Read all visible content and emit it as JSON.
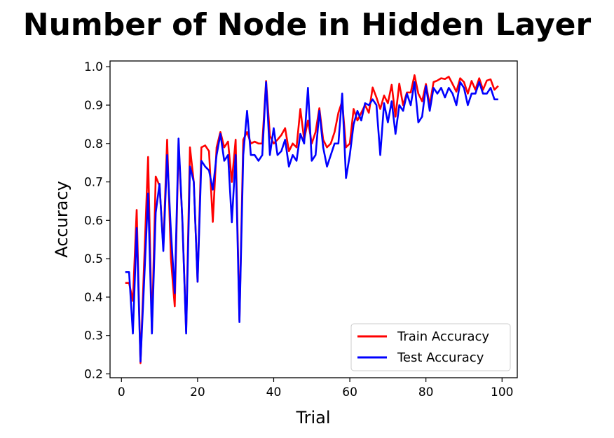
{
  "chart_data": {
    "type": "line",
    "title": "Number of Node in Hidden Layer",
    "xlabel": "Trial",
    "ylabel": "Accuracy",
    "xlim": [
      -3,
      104
    ],
    "ylim": [
      0.19,
      1.015
    ],
    "xticks": [
      0,
      20,
      40,
      60,
      80,
      100
    ],
    "yticks": [
      0.2,
      0.3,
      0.4,
      0.5,
      0.6,
      0.7,
      0.8,
      0.9,
      1.0
    ],
    "ytick_labels": [
      "0.2",
      "0.3",
      "0.4",
      "0.5",
      "0.6",
      "0.7",
      "0.8",
      "0.9",
      "1.0"
    ],
    "grid": false,
    "legend_position": "lower-right",
    "x": [
      1,
      2,
      3,
      4,
      5,
      6,
      7,
      8,
      9,
      10,
      11,
      12,
      13,
      14,
      15,
      16,
      17,
      18,
      19,
      20,
      21,
      22,
      23,
      24,
      25,
      26,
      27,
      28,
      29,
      30,
      31,
      32,
      33,
      34,
      35,
      36,
      37,
      38,
      39,
      40,
      41,
      42,
      43,
      44,
      45,
      46,
      47,
      48,
      49,
      50,
      51,
      52,
      53,
      54,
      55,
      56,
      57,
      58,
      59,
      60,
      61,
      62,
      63,
      64,
      65,
      66,
      67,
      68,
      69,
      70,
      71,
      72,
      73,
      74,
      75,
      76,
      77,
      78,
      79,
      80,
      81,
      82,
      83,
      84,
      85,
      86,
      87,
      88,
      89,
      90,
      91,
      92,
      93,
      94,
      95,
      96,
      97,
      98,
      99
    ],
    "series": [
      {
        "name": "Train Accuracy",
        "color": "#ff0000",
        "values": [
          0.437,
          0.437,
          0.39,
          0.627,
          0.228,
          0.5,
          0.765,
          0.31,
          0.714,
          0.69,
          0.53,
          0.81,
          0.5,
          0.376,
          0.8,
          0.6,
          0.31,
          0.79,
          0.7,
          0.44,
          0.79,
          0.795,
          0.78,
          0.596,
          0.79,
          0.83,
          0.79,
          0.805,
          0.7,
          0.81,
          0.34,
          0.81,
          0.83,
          0.8,
          0.805,
          0.8,
          0.8,
          0.963,
          0.82,
          0.8,
          0.81,
          0.822,
          0.84,
          0.78,
          0.8,
          0.79,
          0.89,
          0.81,
          0.86,
          0.8,
          0.83,
          0.892,
          0.81,
          0.79,
          0.8,
          0.83,
          0.88,
          0.91,
          0.79,
          0.8,
          0.89,
          0.86,
          0.88,
          0.9,
          0.88,
          0.946,
          0.92,
          0.89,
          0.925,
          0.905,
          0.953,
          0.87,
          0.956,
          0.9,
          0.933,
          0.933,
          0.978,
          0.93,
          0.91,
          0.955,
          0.9,
          0.96,
          0.964,
          0.97,
          0.968,
          0.974,
          0.955,
          0.935,
          0.97,
          0.96,
          0.93,
          0.963,
          0.94,
          0.97,
          0.94,
          0.964,
          0.967,
          0.94,
          0.95
        ]
      },
      {
        "name": "Test Accuracy",
        "color": "#0000ff",
        "values": [
          0.465,
          0.465,
          0.305,
          0.58,
          0.232,
          0.45,
          0.67,
          0.305,
          0.62,
          0.695,
          0.52,
          0.77,
          0.57,
          0.41,
          0.813,
          0.6,
          0.305,
          0.74,
          0.7,
          0.44,
          0.755,
          0.74,
          0.73,
          0.68,
          0.77,
          0.825,
          0.755,
          0.77,
          0.595,
          0.77,
          0.335,
          0.77,
          0.885,
          0.77,
          0.77,
          0.755,
          0.77,
          0.96,
          0.77,
          0.84,
          0.77,
          0.78,
          0.81,
          0.74,
          0.77,
          0.755,
          0.825,
          0.8,
          0.945,
          0.755,
          0.77,
          0.885,
          0.79,
          0.74,
          0.77,
          0.8,
          0.8,
          0.93,
          0.71,
          0.77,
          0.85,
          0.885,
          0.86,
          0.905,
          0.9,
          0.915,
          0.9,
          0.77,
          0.905,
          0.855,
          0.91,
          0.825,
          0.9,
          0.885,
          0.93,
          0.9,
          0.96,
          0.855,
          0.87,
          0.95,
          0.885,
          0.945,
          0.93,
          0.945,
          0.92,
          0.945,
          0.93,
          0.9,
          0.96,
          0.945,
          0.9,
          0.93,
          0.93,
          0.96,
          0.93,
          0.93,
          0.945,
          0.915,
          0.915
        ]
      }
    ]
  }
}
